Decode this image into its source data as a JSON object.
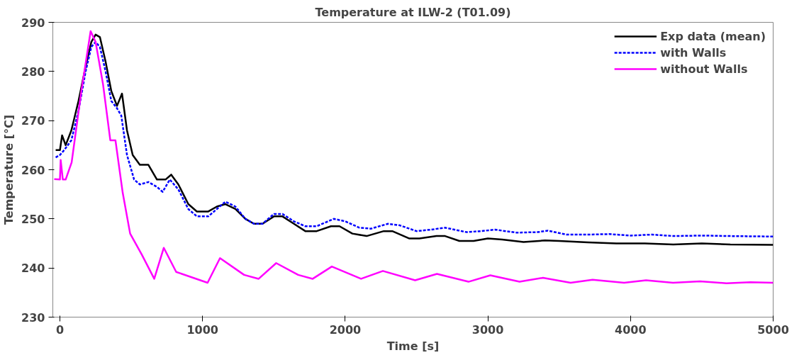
{
  "chart_data": {
    "type": "line",
    "title": "Temperature at ILW-2 (T01.09)",
    "xlabel": "Time [s]",
    "ylabel": "Temperature [°C]",
    "xlim": [
      -50,
      5000
    ],
    "ylim": [
      230,
      290
    ],
    "xticks": [
      0,
      1000,
      2000,
      3000,
      4000,
      5000
    ],
    "yticks": [
      230,
      240,
      250,
      260,
      270,
      280,
      290
    ],
    "grid": false,
    "legend": "top right",
    "series": [
      {
        "name": "Exp data (mean)",
        "color": "#000000",
        "line_style": "solid",
        "x": [
          -30,
          0,
          15,
          40,
          80,
          130,
          180,
          220,
          250,
          280,
          320,
          360,
          400,
          435,
          470,
          510,
          560,
          620,
          680,
          740,
          780,
          830,
          900,
          960,
          1040,
          1100,
          1160,
          1230,
          1300,
          1360,
          1420,
          1500,
          1560,
          1640,
          1720,
          1800,
          1900,
          1960,
          2050,
          2150,
          2270,
          2330,
          2450,
          2520,
          2640,
          2700,
          2800,
          2900,
          3000,
          3100,
          3250,
          3400,
          3500,
          3700,
          3900,
          4100,
          4300,
          4500,
          4700,
          5000
        ],
        "values": [
          264,
          264,
          267,
          265,
          268,
          274,
          281,
          286,
          287.5,
          287,
          282,
          276,
          273,
          275.5,
          268,
          263,
          261,
          261,
          258,
          258,
          259,
          257,
          253,
          251.5,
          251.5,
          252.5,
          253,
          252,
          250,
          249,
          249,
          250.5,
          250.5,
          249,
          247.5,
          247.5,
          248.5,
          248.5,
          247,
          246.5,
          247.5,
          247.5,
          246,
          246,
          246.5,
          246.5,
          245.5,
          245.5,
          246,
          245.8,
          245.3,
          245.6,
          245.5,
          245.2,
          245,
          245,
          244.8,
          245,
          244.8,
          244.7
        ]
      },
      {
        "name": "with Walls",
        "color": "#0000ff",
        "line_style": "dashed",
        "x": [
          -30,
          0,
          30,
          80,
          130,
          180,
          220,
          250,
          280,
          320,
          360,
          400,
          430,
          470,
          520,
          560,
          620,
          680,
          720,
          770,
          830,
          900,
          960,
          1040,
          1100,
          1160,
          1230,
          1300,
          1360,
          1420,
          1500,
          1560,
          1640,
          1720,
          1800,
          1920,
          2000,
          2100,
          2180,
          2300,
          2380,
          2500,
          2600,
          2700,
          2850,
          2950,
          3050,
          3200,
          3350,
          3420,
          3550,
          3700,
          3850,
          4000,
          4150,
          4300,
          4500,
          4700,
          5000
        ],
        "values": [
          262.5,
          263,
          264,
          266,
          272,
          280,
          285,
          286,
          285,
          280,
          274,
          272.5,
          271,
          263,
          258,
          257,
          257.5,
          256.5,
          255.5,
          258,
          256,
          252,
          250.5,
          250.5,
          252,
          253.5,
          252.5,
          250,
          249,
          249,
          251,
          251,
          249.5,
          248.5,
          248.5,
          250,
          249.5,
          248.2,
          248,
          249,
          248.7,
          247.5,
          247.8,
          248.2,
          247.3,
          247.5,
          247.8,
          247.2,
          247.3,
          247.6,
          246.8,
          246.8,
          246.9,
          246.6,
          246.8,
          246.5,
          246.6,
          246.5,
          246.4
        ]
      },
      {
        "name": "without Walls",
        "color": "#ff00ff",
        "line_style": "solid",
        "x": [
          -40,
          0,
          5,
          20,
          40,
          82,
          150,
          215,
          250,
          302,
          353,
          389,
          440,
          492,
          574,
          661,
          728,
          815,
          1035,
          1122,
          1291,
          1393,
          1516,
          1670,
          1772,
          1906,
          2111,
          2264,
          2490,
          2643,
          2864,
          3017,
          3222,
          3386,
          3580,
          3734,
          3955,
          4109,
          4298,
          4488,
          4672,
          4840,
          5000
        ],
        "values": [
          258.1,
          258,
          262,
          258,
          258,
          261.5,
          276,
          288.2,
          286,
          277.4,
          266,
          266,
          255.3,
          247,
          242.7,
          237.8,
          244.1,
          239.2,
          237,
          242,
          238.6,
          237.8,
          241,
          238.6,
          237.8,
          240.3,
          237.8,
          239.4,
          237.5,
          238.8,
          237.2,
          238.5,
          237.2,
          238,
          237,
          237.6,
          237,
          237.5,
          237,
          237.3,
          236.9,
          237.1,
          237
        ]
      }
    ]
  }
}
